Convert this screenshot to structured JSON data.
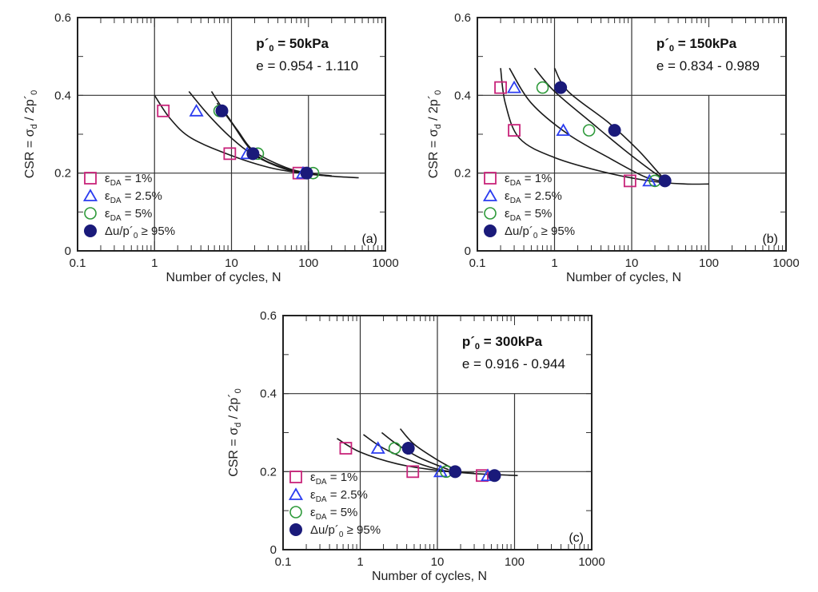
{
  "chart_data": [
    {
      "type": "scatter",
      "panel_label": "(a)",
      "annotation_title": {
        "main": "p´",
        "sub": "0",
        "rest": " = 50kPa"
      },
      "annotation_void": "e = 0.954 - 1.110",
      "xlabel": "Number of cycles, N",
      "ylabel": {
        "a": "CSR = σ",
        "sub1": "d",
        "b": " / 2p´",
        "sub2": "0"
      },
      "xscale": "log",
      "xlim": [
        0.1,
        1000
      ],
      "ylim": [
        0,
        0.6
      ],
      "xticks": [
        "0.1",
        "1",
        "10",
        "100",
        "1000"
      ],
      "yticks": [
        "0",
        "0.2",
        "0.4",
        "0.6"
      ],
      "grid": true,
      "legend_position": "bottom-left",
      "series": [
        {
          "name": "εDA = 1%",
          "marker": "square",
          "color": "#c8247a",
          "points": [
            [
              1.3,
              0.36
            ],
            [
              9.5,
              0.25
            ],
            [
              75,
              0.2
            ]
          ]
        },
        {
          "name": "εDA = 2.5%",
          "marker": "triangle",
          "color": "#2b3cf0",
          "points": [
            [
              3.5,
              0.36
            ],
            [
              16,
              0.25
            ],
            [
              85,
              0.2
            ]
          ]
        },
        {
          "name": "εDA = 5%",
          "marker": "circle-open",
          "color": "#2e9a3a",
          "points": [
            [
              7,
              0.36
            ],
            [
              22,
              0.25
            ],
            [
              115,
              0.2
            ]
          ]
        },
        {
          "name": "Δu/p´0 ≥ 95%",
          "marker": "circle-filled",
          "color": "#1a1a7a",
          "points": [
            [
              7.5,
              0.36
            ],
            [
              19,
              0.25
            ],
            [
              95,
              0.2
            ]
          ]
        }
      ],
      "curves": [
        [
          [
            1.0,
            0.4
          ],
          [
            1.6,
            0.34
          ],
          [
            3,
            0.29
          ],
          [
            10,
            0.245
          ],
          [
            30,
            0.215
          ],
          [
            80,
            0.2
          ],
          [
            200,
            0.192
          ],
          [
            450,
            0.188
          ]
        ],
        [
          [
            2.8,
            0.41
          ],
          [
            5,
            0.35
          ],
          [
            10,
            0.29
          ],
          [
            20,
            0.245
          ],
          [
            50,
            0.21
          ],
          [
            100,
            0.198
          ],
          [
            200,
            0.192
          ]
        ],
        [
          [
            5.5,
            0.41
          ],
          [
            8,
            0.36
          ],
          [
            12,
            0.31
          ],
          [
            20,
            0.255
          ],
          [
            50,
            0.215
          ],
          [
            100,
            0.2
          ],
          [
            200,
            0.193
          ]
        ],
        [
          [
            6.5,
            0.38
          ],
          [
            10,
            0.33
          ],
          [
            20,
            0.25
          ],
          [
            50,
            0.212
          ],
          [
            120,
            0.198
          ]
        ]
      ]
    },
    {
      "type": "scatter",
      "panel_label": "(b)",
      "annotation_title": {
        "main": "p´",
        "sub": "0",
        "rest": " = 150kPa"
      },
      "annotation_void": "e = 0.834 - 0.989",
      "xlabel": "Number of cycles, N",
      "ylabel": {
        "a": "CSR = σ",
        "sub1": "d",
        "b": " / 2p´",
        "sub2": "0"
      },
      "xscale": "log",
      "xlim": [
        0.1,
        1000
      ],
      "ylim": [
        0,
        0.6
      ],
      "xticks": [
        "0.1",
        "1",
        "10",
        "100",
        "1000"
      ],
      "yticks": [
        "0",
        "0.2",
        "0.4",
        "0.6"
      ],
      "grid": true,
      "legend_position": "bottom-left",
      "series": [
        {
          "name": "εDA = 1%",
          "marker": "square",
          "color": "#c8247a",
          "points": [
            [
              0.2,
              0.42
            ],
            [
              0.3,
              0.31
            ],
            [
              9.5,
              0.18
            ]
          ]
        },
        {
          "name": "εDA = 2.5%",
          "marker": "triangle",
          "color": "#2b3cf0",
          "points": [
            [
              0.3,
              0.42
            ],
            [
              1.3,
              0.31
            ],
            [
              17,
              0.18
            ]
          ]
        },
        {
          "name": "εDA = 5%",
          "marker": "circle-open",
          "color": "#2e9a3a",
          "points": [
            [
              0.7,
              0.42
            ],
            [
              2.8,
              0.31
            ],
            [
              20,
              0.18
            ]
          ]
        },
        {
          "name": "Δu/p´0 ≥ 95%",
          "marker": "circle-filled",
          "color": "#1a1a7a",
          "points": [
            [
              1.2,
              0.42
            ],
            [
              6,
              0.31
            ],
            [
              27,
              0.18
            ]
          ]
        }
      ],
      "curves": [
        [
          [
            0.2,
            0.47
          ],
          [
            0.23,
            0.38
          ],
          [
            0.35,
            0.29
          ],
          [
            1,
            0.24
          ],
          [
            5,
            0.2
          ],
          [
            20,
            0.178
          ],
          [
            50,
            0.172
          ],
          [
            100,
            0.172
          ]
        ],
        [
          [
            0.26,
            0.47
          ],
          [
            0.5,
            0.38
          ],
          [
            1.5,
            0.3
          ],
          [
            5,
            0.24
          ],
          [
            15,
            0.19
          ],
          [
            30,
            0.176
          ]
        ],
        [
          [
            0.55,
            0.47
          ],
          [
            1,
            0.41
          ],
          [
            3,
            0.33
          ],
          [
            8,
            0.26
          ],
          [
            20,
            0.2
          ],
          [
            30,
            0.18
          ]
        ],
        [
          [
            1.0,
            0.47
          ],
          [
            1.5,
            0.41
          ],
          [
            5,
            0.33
          ],
          [
            12,
            0.26
          ],
          [
            25,
            0.19
          ],
          [
            30,
            0.18
          ]
        ]
      ]
    },
    {
      "type": "scatter",
      "panel_label": "(c)",
      "annotation_title": {
        "main": "p´",
        "sub": "0",
        "rest": " = 300kPa"
      },
      "annotation_void": "e = 0.916 - 0.944",
      "xlabel": "Number of cycles, N",
      "ylabel": {
        "a": "CSR = σ",
        "sub1": "d",
        "b": " / 2p´",
        "sub2": "0"
      },
      "xscale": "log",
      "xlim": [
        0.1,
        1000
      ],
      "ylim": [
        0,
        0.6
      ],
      "xticks": [
        "0.1",
        "1",
        "10",
        "100",
        "1000"
      ],
      "yticks": [
        "0",
        "0.2",
        "0.4",
        "0.6"
      ],
      "grid": true,
      "legend_position": "bottom-left",
      "series": [
        {
          "name": "εDA = 1%",
          "marker": "square",
          "color": "#c8247a",
          "points": [
            [
              0.65,
              0.26
            ],
            [
              4.8,
              0.2
            ],
            [
              38,
              0.19
            ]
          ]
        },
        {
          "name": "εDA = 2.5%",
          "marker": "triangle",
          "color": "#2b3cf0",
          "points": [
            [
              1.7,
              0.26
            ],
            [
              11,
              0.2
            ],
            [
              45,
              0.19
            ]
          ]
        },
        {
          "name": "εDA = 5%",
          "marker": "circle-open",
          "color": "#2e9a3a",
          "points": [
            [
              2.8,
              0.26
            ],
            [
              13,
              0.2
            ]
          ]
        },
        {
          "name": "Δu/p´0 ≥ 95%",
          "marker": "circle-filled",
          "color": "#1a1a7a",
          "points": [
            [
              4.2,
              0.26
            ],
            [
              17,
              0.2
            ],
            [
              55,
              0.19
            ]
          ]
        }
      ],
      "curves": [
        [
          [
            0.5,
            0.285
          ],
          [
            1,
            0.25
          ],
          [
            3,
            0.22
          ],
          [
            10,
            0.203
          ],
          [
            30,
            0.195
          ],
          [
            110,
            0.19
          ]
        ],
        [
          [
            1.1,
            0.295
          ],
          [
            2,
            0.26
          ],
          [
            5,
            0.225
          ],
          [
            12,
            0.203
          ],
          [
            30,
            0.196
          ]
        ],
        [
          [
            1.9,
            0.3
          ],
          [
            3,
            0.27
          ],
          [
            6,
            0.235
          ],
          [
            14,
            0.205
          ]
        ],
        [
          [
            3.3,
            0.31
          ],
          [
            5,
            0.27
          ],
          [
            10,
            0.23
          ],
          [
            17,
            0.205
          ]
        ]
      ]
    }
  ],
  "legend": [
    {
      "sym": "ε",
      "sub": "DA",
      "rest": " = 1%"
    },
    {
      "sym": "ε",
      "sub": "DA",
      "rest": " = 2.5%"
    },
    {
      "sym": "ε",
      "sub": "DA",
      "rest": " = 5%"
    },
    {
      "sym": "Δu/p´",
      "sub": "0",
      "rest": " ≥ 95%"
    }
  ]
}
